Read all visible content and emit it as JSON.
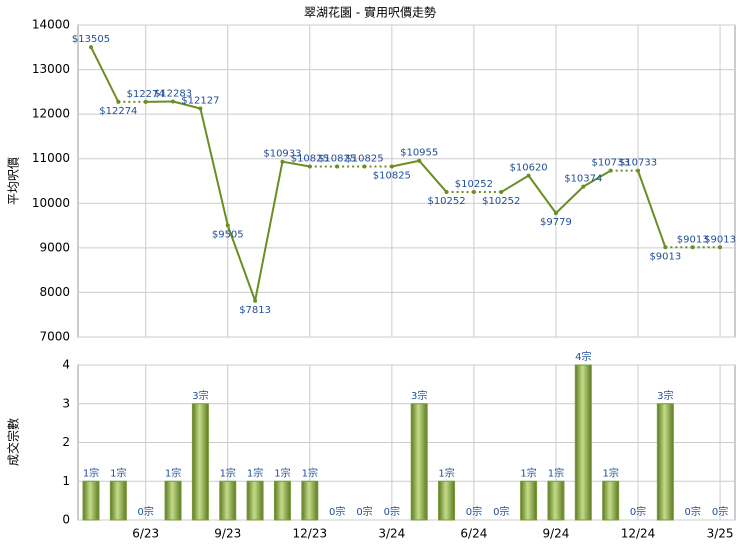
{
  "chart_data": [
    {
      "type": "line",
      "title": "翠湖花園 - 實用呎價走勢",
      "y_label": "平均呎價",
      "color": "#6b8e23",
      "values": [
        13505,
        12274,
        12274,
        12283,
        12127,
        9505,
        7813,
        10933,
        10825,
        10825,
        10825,
        10825,
        10955,
        10252,
        10252,
        10252,
        10620,
        9779,
        10374,
        10733,
        10733,
        9013,
        9013,
        9013
      ],
      "value_labels": [
        "$13505",
        "$12274",
        "$12274",
        "$12283",
        "$12127",
        "$9505",
        "$7813",
        "$10933",
        "$10825",
        "$10825",
        "$10825",
        "$10825",
        "$10955",
        "$10252",
        "$10252",
        "$10252",
        "$10620",
        "$9779",
        "$10374",
        "$10733",
        "$10733",
        "$9013",
        "$9013",
        "$9013"
      ],
      "ylim": [
        7000,
        14000
      ],
      "yticks": [
        7000,
        8000,
        9000,
        10000,
        11000,
        12000,
        13000,
        14000
      ],
      "grid": true
    },
    {
      "type": "bar",
      "y_label": "成交宗數",
      "color": "#7a9a3a",
      "categories": [
        null,
        null,
        "6/23",
        null,
        null,
        "9/23",
        null,
        null,
        "12/23",
        null,
        null,
        "3/24",
        null,
        null,
        "6/24",
        null,
        null,
        "9/24",
        null,
        null,
        "12/24",
        null,
        null,
        "3/25"
      ],
      "values": [
        1,
        1,
        0,
        1,
        3,
        1,
        1,
        1,
        1,
        0,
        0,
        0,
        3,
        1,
        0,
        0,
        1,
        1,
        4,
        1,
        0,
        3,
        0,
        0
      ],
      "value_labels": [
        "1宗",
        "1宗",
        "0宗",
        "1宗",
        "3宗",
        "1宗",
        "1宗",
        "1宗",
        "1宗",
        "0宗",
        "0宗",
        "0宗",
        "3宗",
        "1宗",
        "0宗",
        "0宗",
        "1宗",
        "1宗",
        "4宗",
        "1宗",
        "0宗",
        "3宗",
        "0宗",
        "0宗"
      ],
      "ylim": [
        0,
        4
      ],
      "yticks": [
        0,
        1,
        2,
        3,
        4
      ],
      "grid": true
    }
  ]
}
